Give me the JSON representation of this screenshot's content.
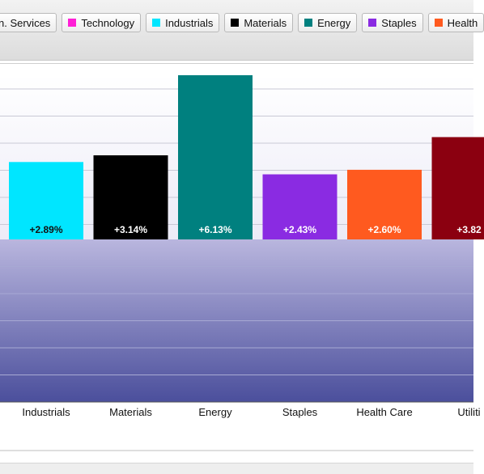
{
  "legend": [
    {
      "label": "n. Services",
      "color": "#f2f2f2"
    },
    {
      "label": "Technology",
      "color": "#ff1fd6"
    },
    {
      "label": "Industrials",
      "color": "#00e6ff"
    },
    {
      "label": "Materials",
      "color": "#000000"
    },
    {
      "label": "Energy",
      "color": "#00807f"
    },
    {
      "label": "Staples",
      "color": "#8a2be2"
    },
    {
      "label": "Health",
      "color": "#ff5a1f"
    }
  ],
  "chart_data": {
    "type": "bar",
    "title": "",
    "xlabel": "",
    "ylabel": "",
    "categories": [
      "Industrials",
      "Materials",
      "Energy",
      "Staples",
      "Health Care",
      "Utiliti"
    ],
    "values": [
      2.89,
      3.14,
      6.13,
      2.43,
      2.6,
      3.82
    ],
    "value_labels": [
      "+2.89%",
      "+3.14%",
      "+6.13%",
      "+2.43%",
      "+2.60%",
      "+3.82"
    ],
    "colors": [
      "#00e6ff",
      "#000000",
      "#00807f",
      "#8a2be2",
      "#ff5a1f",
      "#8b0010"
    ],
    "label_colors": [
      "#111111",
      "#ffffff",
      "#ffffff",
      "#ffffff",
      "#ffffff",
      "#ffffff"
    ],
    "ylim": [
      -6.13,
      6.13
    ],
    "grid": true
  }
}
